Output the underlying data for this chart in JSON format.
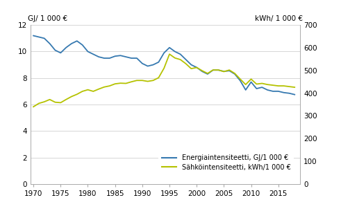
{
  "ylabel_left": "GJ/ 1 000 €",
  "ylabel_right": "kWh/ 1 000 €",
  "ylim_left": [
    0,
    12
  ],
  "ylim_right": [
    0,
    700
  ],
  "yticks_left": [
    0,
    2,
    4,
    6,
    8,
    10,
    12
  ],
  "yticks_right": [
    0,
    100,
    200,
    300,
    400,
    500,
    600,
    700
  ],
  "xticks": [
    1970,
    1975,
    1980,
    1985,
    1990,
    1995,
    2000,
    2005,
    2010,
    2015
  ],
  "xlim": [
    1969.5,
    2019.0
  ],
  "energy_color": "#3679b0",
  "electricity_color": "#b5c200",
  "legend_energy": "Energiaintensiteetti, GJ/1 000 €",
  "legend_electricity": "Sähköintensiteetti, kWh/1 000 €",
  "years": [
    1970,
    1971,
    1972,
    1973,
    1974,
    1975,
    1976,
    1977,
    1978,
    1979,
    1980,
    1981,
    1982,
    1983,
    1984,
    1985,
    1986,
    1987,
    1988,
    1989,
    1990,
    1991,
    1992,
    1993,
    1994,
    1995,
    1996,
    1997,
    1998,
    1999,
    2000,
    2001,
    2002,
    2003,
    2004,
    2005,
    2006,
    2007,
    2008,
    2009,
    2010,
    2011,
    2012,
    2013,
    2014,
    2015,
    2016,
    2017,
    2018
  ],
  "energy_intensity": [
    11.2,
    11.1,
    11.0,
    10.6,
    10.1,
    9.9,
    10.3,
    10.6,
    10.8,
    10.5,
    10.0,
    9.8,
    9.6,
    9.5,
    9.5,
    9.65,
    9.7,
    9.6,
    9.5,
    9.5,
    9.1,
    8.9,
    9.0,
    9.2,
    9.9,
    10.3,
    10.0,
    9.8,
    9.4,
    9.0,
    8.8,
    8.5,
    8.3,
    8.6,
    8.6,
    8.5,
    8.55,
    8.3,
    7.8,
    7.1,
    7.7,
    7.2,
    7.3,
    7.1,
    7.0,
    7.0,
    6.9,
    6.85,
    6.75
  ],
  "electricity_intensity": [
    340,
    355,
    362,
    372,
    360,
    358,
    372,
    385,
    395,
    408,
    415,
    408,
    418,
    427,
    432,
    441,
    444,
    443,
    450,
    456,
    456,
    452,
    456,
    468,
    510,
    572,
    555,
    548,
    530,
    508,
    513,
    499,
    487,
    502,
    502,
    495,
    502,
    487,
    462,
    438,
    462,
    440,
    443,
    438,
    435,
    432,
    432,
    429,
    426
  ]
}
